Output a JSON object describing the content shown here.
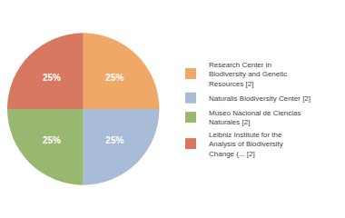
{
  "chart_data": {
    "type": "pie",
    "categories": [
      "Research Center in\nBiodiversity and Genetic\nResources [2]",
      "Naturalis Biodiversity Center [2]",
      "Museo Nacional de Ciencias\nNaturales [2]",
      "Leibniz Institute for the\nAnalysis of Biodiversity\nChange (... [2]"
    ],
    "values": [
      25,
      25,
      25,
      25
    ],
    "value_labels": [
      "25%",
      "25%",
      "25%",
      "25%"
    ],
    "data_labels": true,
    "colors": [
      "#f0a868",
      "#a8bcd8",
      "#98b870",
      "#d87860"
    ],
    "legend": "right"
  }
}
